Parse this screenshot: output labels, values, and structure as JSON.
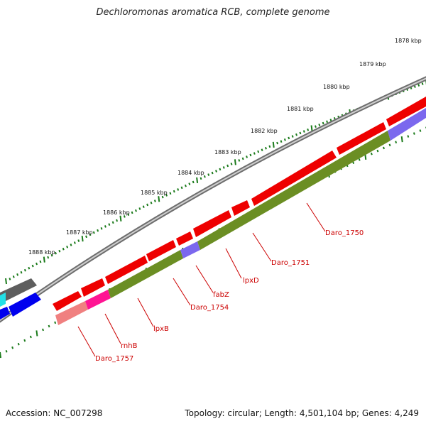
{
  "title": "Dechloromonas aromatica RCB, complete genome",
  "footer": {
    "accession": "Accession: NC_007298",
    "summary": "Topology: circular; Length: 4,501,104 bp; Genes: 4,249"
  },
  "colors": {
    "forward_gene": "#ff0000",
    "feature_track": "#6b8e23",
    "backbone": "#7a7a7a",
    "tick": "#1a7a1a",
    "label": "#cc0000"
  },
  "scale_labels": [
    {
      "kb": 1878,
      "text": "1878 kbp"
    },
    {
      "kb": 1879,
      "text": "1879 kbp"
    },
    {
      "kb": 1880,
      "text": "1880 kbp"
    },
    {
      "kb": 1881,
      "text": "1881 kbp"
    },
    {
      "kb": 1882,
      "text": "1882 kbp"
    },
    {
      "kb": 1883,
      "text": "1883 kbp"
    },
    {
      "kb": 1884,
      "text": "1884 kbp"
    },
    {
      "kb": 1885,
      "text": "1885 kbp"
    },
    {
      "kb": 1886,
      "text": "1886 kbp"
    },
    {
      "kb": 1887,
      "text": "1887 kbp"
    },
    {
      "kb": 1888,
      "text": "1888 kbp"
    }
  ],
  "gene_labels": [
    {
      "name": "Daro_1750"
    },
    {
      "name": "Daro_1751"
    },
    {
      "name": "lpxD"
    },
    {
      "name": "fabZ"
    },
    {
      "name": "Daro_1754"
    },
    {
      "name": "lpxB"
    },
    {
      "name": "rnhB"
    },
    {
      "name": "Daro_1757"
    }
  ]
}
